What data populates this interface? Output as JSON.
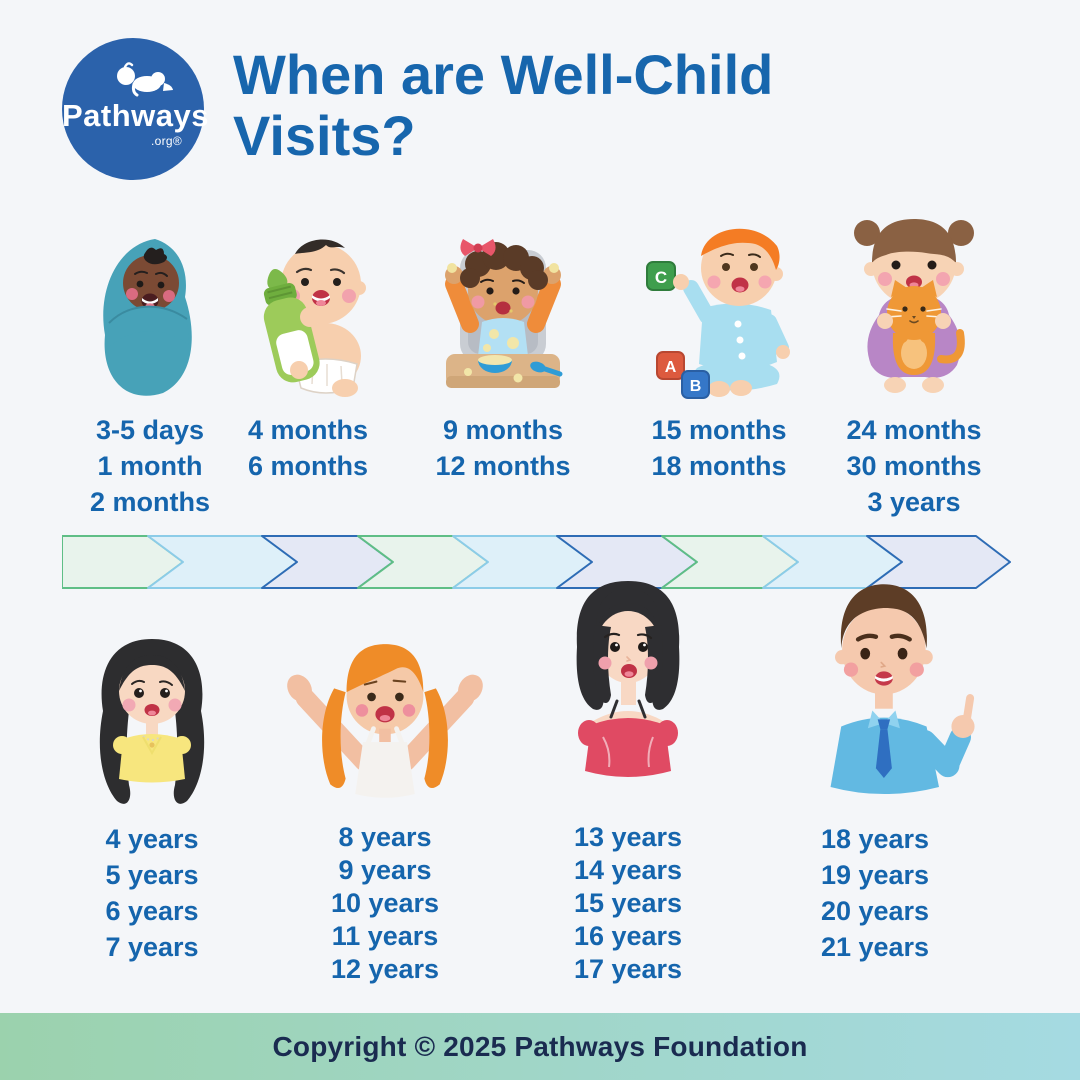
{
  "header": {
    "logo": {
      "brand": "Pathways",
      "suffix": ".org®"
    },
    "title": "When are Well-Child Visits?"
  },
  "visit_groups": {
    "infants": [
      {
        "figure": "swaddled-newborn",
        "ages": [
          "3-5 days",
          "1 month",
          "2 months"
        ]
      },
      {
        "figure": "baby-with-bottle",
        "ages": [
          "4 months",
          "6 months"
        ]
      },
      {
        "figure": "baby-in-high-chair",
        "ages": [
          "9 months",
          "12 months"
        ]
      },
      {
        "figure": "baby-with-blocks",
        "ages": [
          "15 months",
          "18 months"
        ],
        "block_letters": {
          "a": "A",
          "b": "B",
          "c": "C"
        }
      },
      {
        "figure": "toddler-with-cat",
        "ages": [
          "24 months",
          "30 months",
          "3 years"
        ]
      }
    ],
    "children": [
      {
        "figure": "girl-4-to-7",
        "ages": [
          "4 years",
          "5 years",
          "6 years",
          "7 years"
        ]
      },
      {
        "figure": "girl-8-to-12",
        "ages": [
          "8 years",
          "9 years",
          "10 years",
          "11 years",
          "12 years"
        ]
      },
      {
        "figure": "teen-13-to-17",
        "ages": [
          "13 years",
          "14 years",
          "15 years",
          "16 years",
          "17 years"
        ]
      },
      {
        "figure": "man-18-to-21",
        "ages": [
          "18 years",
          "19 years",
          "20 years",
          "21 years"
        ]
      }
    ]
  },
  "footer": {
    "copyright": "Copyright © 2025 Pathways Foundation"
  },
  "colors": {
    "background": "#f4f6f9",
    "title_blue": "#1766ad",
    "label_blue": "#1565ad",
    "logo_circle_blue": "#2b62ab",
    "band_green_fill": "#e8f3ec",
    "band_green_stroke": "#5fbe86",
    "band_blue_fill": "#def0f9",
    "band_blue_stroke": "#8ccce8",
    "band_lavender_fill": "#e4e8f5",
    "band_lavender_stroke": "#2e6cb5",
    "footer_gradient_left": "#9bd2ad",
    "footer_gradient_right": "#a5dae2",
    "footer_text_navy": "#1a2b50"
  }
}
